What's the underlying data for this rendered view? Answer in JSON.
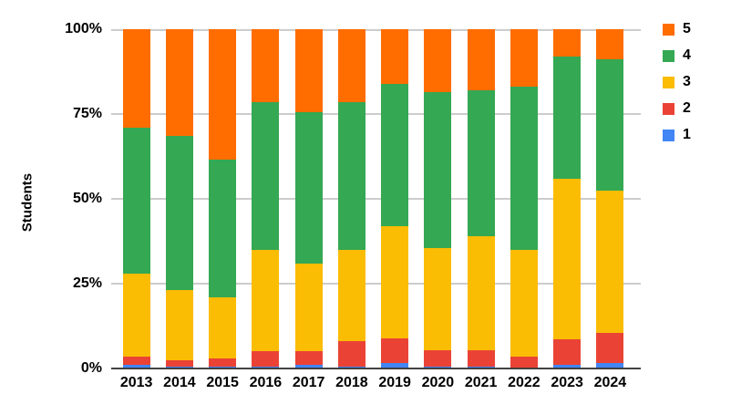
{
  "chart_data": {
    "type": "bar",
    "stacked": true,
    "percent_stacked": true,
    "title": "",
    "xlabel": "",
    "ylabel": "Students",
    "ylim": [
      0,
      100
    ],
    "grid": true,
    "legend_position": "right",
    "legend_order": [
      "5",
      "4",
      "3",
      "2",
      "1"
    ],
    "y_ticks": [
      {
        "label": "0%",
        "value": 0
      },
      {
        "label": "25%",
        "value": 25
      },
      {
        "label": "50%",
        "value": 50
      },
      {
        "label": "75%",
        "value": 75
      },
      {
        "label": "100%",
        "value": 100
      }
    ],
    "categories": [
      "2013",
      "2014",
      "2015",
      "2016",
      "2017",
      "2018",
      "2019",
      "2020",
      "2021",
      "2022",
      "2023",
      "2024"
    ],
    "series": [
      {
        "name": "1",
        "color": "#4285F4",
        "values": [
          1,
          0.5,
          0.5,
          0.5,
          1,
          0.5,
          1.5,
          0.5,
          0.5,
          0,
          1,
          1.5
        ]
      },
      {
        "name": "2",
        "color": "#EA4335",
        "values": [
          2.5,
          2,
          2.5,
          4.5,
          4,
          7.5,
          7.5,
          5,
          5,
          3.5,
          7.5,
          9
        ]
      },
      {
        "name": "3",
        "color": "#FBBC04",
        "values": [
          24.5,
          20.5,
          18,
          30,
          26,
          27,
          33,
          30,
          33.5,
          31.5,
          47.5,
          42
        ]
      },
      {
        "name": "4",
        "color": "#34A853",
        "values": [
          43,
          45.5,
          40.5,
          43.5,
          44.5,
          43.5,
          42,
          46,
          43,
          48,
          36,
          38.5
        ]
      },
      {
        "name": "5",
        "color": "#FF6D01",
        "values": [
          29,
          31.5,
          38.5,
          21.5,
          24.5,
          21.5,
          16,
          18.5,
          18,
          17,
          8,
          9
        ]
      }
    ],
    "colors": {
      "background": "#FFFFFF",
      "gridline": "#CCCCCC",
      "axis_line": "#424242",
      "text": "#000000"
    }
  }
}
